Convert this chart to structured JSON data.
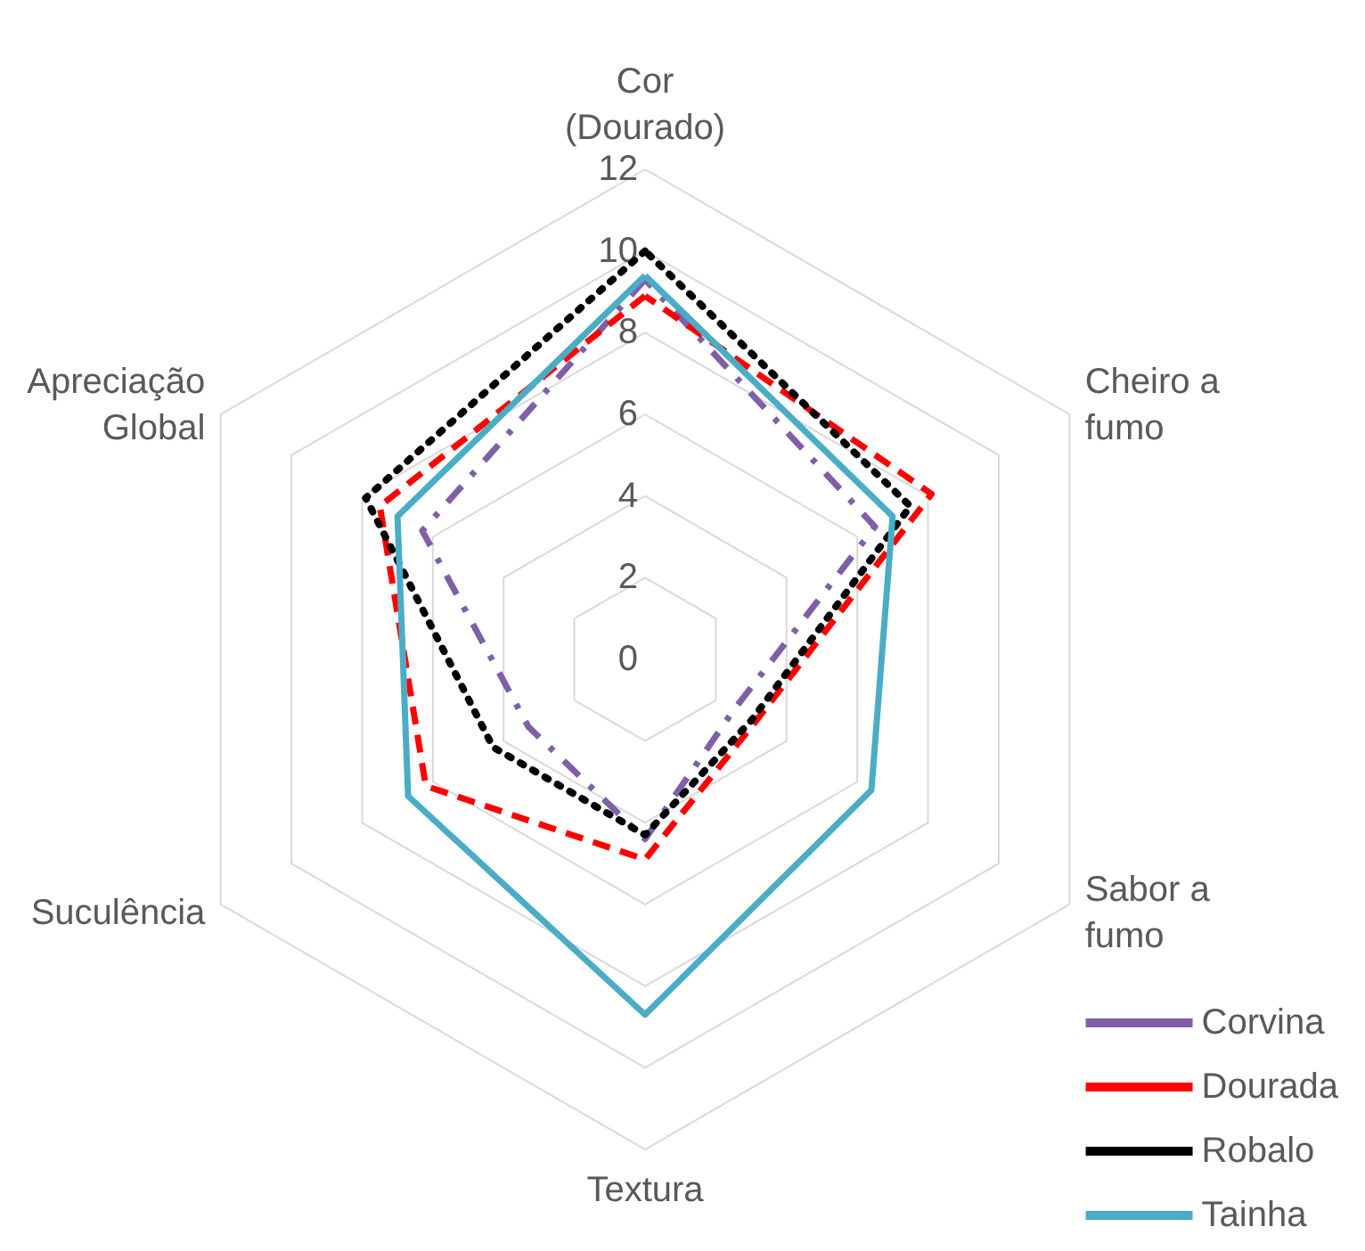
{
  "chart_data": {
    "type": "radar",
    "categories": [
      "Cor (Dourado)",
      "Cheiro a fumo",
      "Sabor a fumo",
      "Textura",
      "Suculência",
      "Apreciação Global"
    ],
    "ylim": [
      0,
      12
    ],
    "yticks": [
      0,
      2,
      4,
      6,
      8,
      10,
      12
    ],
    "grid": true,
    "legend": "bottom right",
    "marker": "none",
    "series": [
      {
        "name": "Corvina",
        "color": "#7f5fa8",
        "line_style": "dashdot",
        "values": [
          9.3,
          6.5,
          2.5,
          4.4,
          3.3,
          6.3
        ]
      },
      {
        "name": "Dourada",
        "color": "#ff0000",
        "line_style": "dashed",
        "values": [
          8.9,
          8.1,
          3.1,
          4.9,
          6.2,
          7.5
        ]
      },
      {
        "name": "Robalo",
        "color": "#000000",
        "line_style": "dotted",
        "values": [
          10,
          7.5,
          3,
          4.3,
          4.3,
          7.9
        ]
      },
      {
        "name": "Tainha",
        "color": "#4bacc6",
        "line_style": "solid",
        "values": [
          9.4,
          7,
          6.4,
          8.7,
          6.7,
          7
        ]
      }
    ]
  }
}
